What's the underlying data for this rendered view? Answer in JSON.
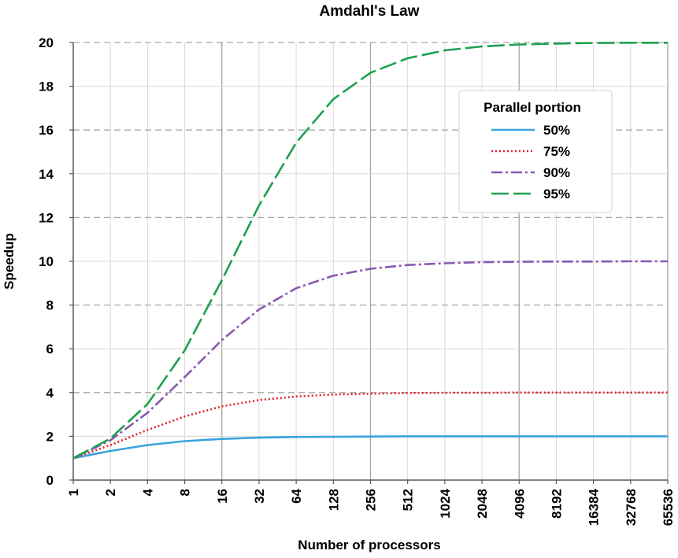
{
  "chart_data": {
    "type": "line",
    "title": "Amdahl's Law",
    "xlabel": "Number of processors",
    "ylabel": "Speedup",
    "x_scale": "log2",
    "categories": [
      "1",
      "2",
      "4",
      "8",
      "16",
      "32",
      "64",
      "128",
      "256",
      "512",
      "1024",
      "2048",
      "4096",
      "8192",
      "16384",
      "32768",
      "65536"
    ],
    "ylim": [
      0,
      20
    ],
    "yticks": [
      "0",
      "2",
      "4",
      "6",
      "8",
      "10",
      "12",
      "14",
      "16",
      "18",
      "20"
    ],
    "grid": true,
    "legend": {
      "title": "Parallel portion",
      "placement": "top-right"
    },
    "series": [
      {
        "name": "50%",
        "color": "#3aa3dd",
        "dash": "solid",
        "values": [
          1.0,
          1.33,
          1.6,
          1.78,
          1.88,
          1.94,
          1.97,
          1.98,
          1.99,
          2.0,
          2.0,
          2.0,
          2.0,
          2.0,
          2.0,
          2.0,
          2.0
        ]
      },
      {
        "name": "75%",
        "color": "#e0242b",
        "dash": "dotted",
        "values": [
          1.0,
          1.6,
          2.29,
          2.91,
          3.37,
          3.66,
          3.82,
          3.91,
          3.95,
          3.98,
          3.99,
          3.99,
          4.0,
          4.0,
          4.0,
          4.0,
          4.0
        ]
      },
      {
        "name": "90%",
        "color": "#8a58b0",
        "dash": "dashdot",
        "values": [
          1.0,
          1.82,
          3.08,
          4.71,
          6.4,
          7.8,
          8.77,
          9.34,
          9.66,
          9.83,
          9.91,
          9.96,
          9.98,
          9.99,
          9.99,
          10.0,
          10.0
        ]
      },
      {
        "name": "95%",
        "color": "#1ca14e",
        "dash": "longdash",
        "values": [
          1.0,
          1.9,
          3.48,
          5.93,
          9.14,
          12.55,
          15.42,
          17.41,
          18.62,
          19.28,
          19.64,
          19.82,
          19.91,
          19.95,
          19.98,
          19.99,
          19.99
        ]
      }
    ]
  }
}
